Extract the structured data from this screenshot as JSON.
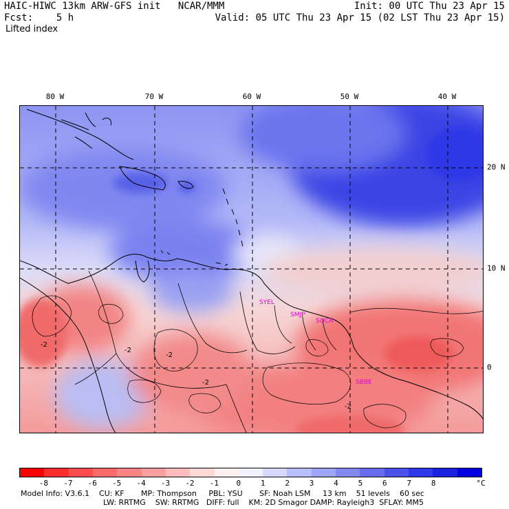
{
  "header": {
    "title": "HAIC-HIWC 13km ARW-GFS init   NCAR/MMM",
    "fcst": "Fcst:    5 h",
    "field": "Lifted index",
    "init": "Init: 00 UTC Thu 23 Apr 15",
    "valid": "Valid: 05 UTC Thu 23 Apr 15 (02 LST Thu 23 Apr 15)"
  },
  "axes": {
    "longitude_labels": [
      "80 W",
      "70 W",
      "60 W",
      "50 W",
      "40 W"
    ],
    "latitude_labels": [
      "20 N",
      "10 N",
      "0"
    ]
  },
  "map": {
    "region": "Caribbean and northern South America",
    "shading": "Lifted index (blue stable north, red unstable south)",
    "station_labels": [
      "SYEL",
      "SMJP",
      "SOCA",
      "SBBE"
    ],
    "contour_labels": [
      "-2",
      "-2",
      "-2",
      "-2",
      "-2"
    ]
  },
  "colorbar": {
    "tick_labels": [
      "-8",
      "-7",
      "-6",
      "-5",
      "-4",
      "-3",
      "-2",
      "-1",
      "0",
      "1",
      "2",
      "3",
      "4",
      "5",
      "6",
      "7",
      "8"
    ],
    "unit": "°C",
    "colors": [
      "#ff0000",
      "#ff2e2e",
      "#ff4d4d",
      "#ff6a6a",
      "#ff8585",
      "#ffa0a0",
      "#ffbcbc",
      "#ffd8d8",
      "#fff0f0",
      "#f0f0ff",
      "#d6d8ff",
      "#b9beff",
      "#9ea4f8",
      "#8289f2",
      "#666eee",
      "#4a52ea",
      "#2f38e6",
      "#1a22e0",
      "#0000e0"
    ]
  },
  "footer": {
    "line1": "Model Info: V3.6.1    CU: KF       MP: Thompson     PBL: YSU       SF: Noah LSM     13 km    51 levels    60 sec",
    "line2": "LW: RRTMG    SW: RRTMG   DIFF: full    KM: 2D Smagor DAMP: Rayleigh3  SFLAY: MM5"
  }
}
